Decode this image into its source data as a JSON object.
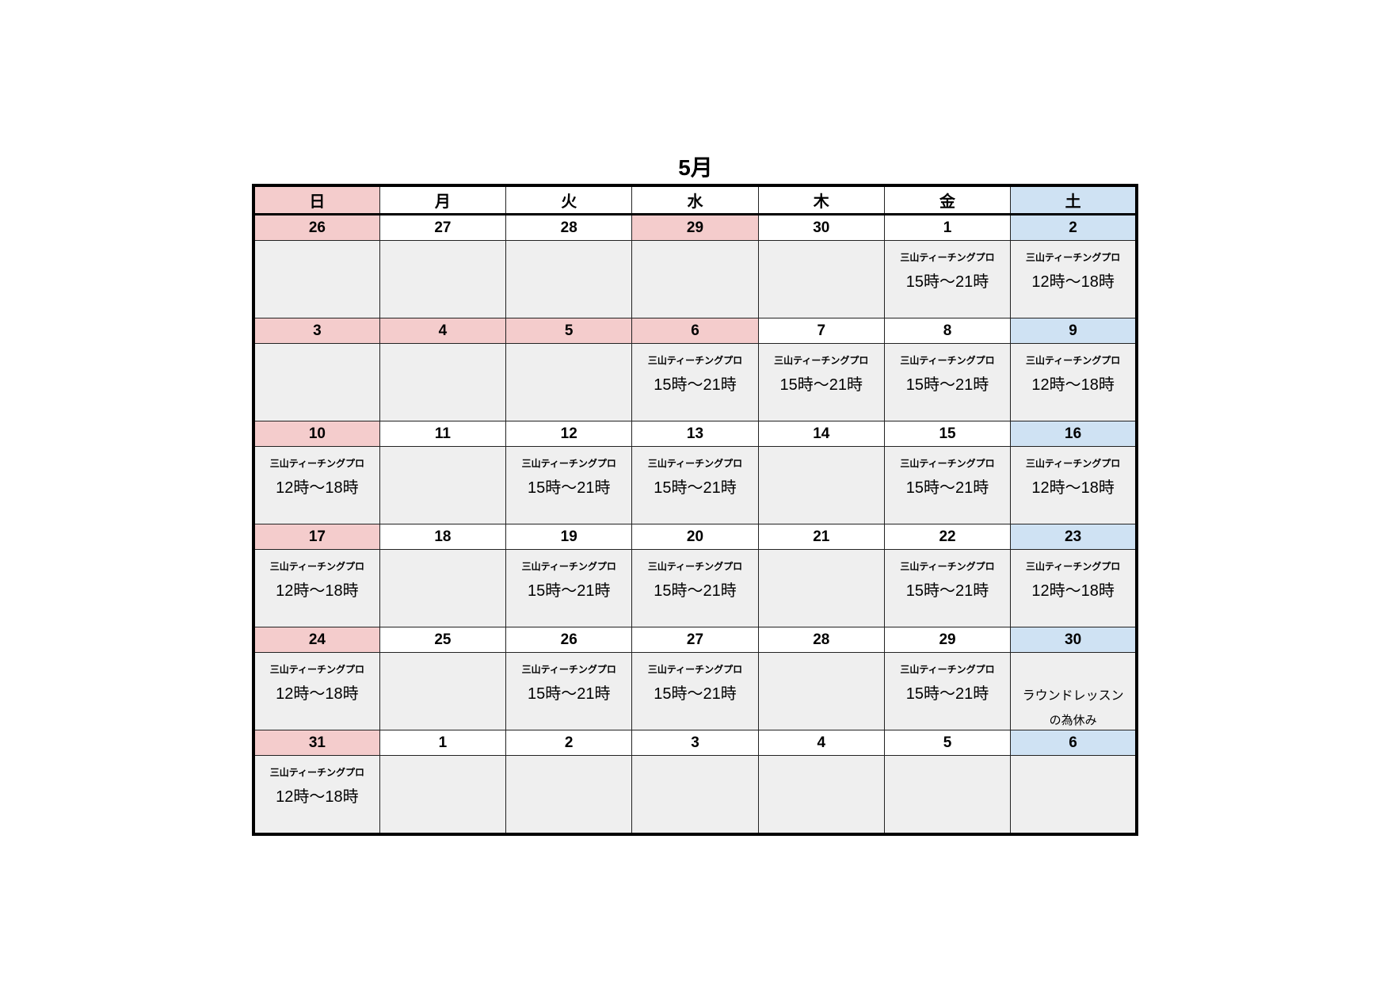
{
  "title": "5月",
  "colors": {
    "sunday_holiday": "#f4cccc",
    "saturday": "#cfe2f3",
    "content_bg": "#efefef"
  },
  "weekdays": [
    {
      "label": "日",
      "color": "pink"
    },
    {
      "label": "月",
      "color": "white"
    },
    {
      "label": "火",
      "color": "white"
    },
    {
      "label": "水",
      "color": "white"
    },
    {
      "label": "木",
      "color": "white"
    },
    {
      "label": "金",
      "color": "white"
    },
    {
      "label": "土",
      "color": "blue"
    }
  ],
  "weeks": [
    {
      "days": [
        {
          "date": "26",
          "color": "pink"
        },
        {
          "date": "27"
        },
        {
          "date": "28"
        },
        {
          "date": "29",
          "color": "pink"
        },
        {
          "date": "30"
        },
        {
          "date": "1",
          "label": "三山ティーチングプロ",
          "time": "15時〜21時"
        },
        {
          "date": "2",
          "color": "blue",
          "label": "三山ティーチングプロ",
          "time": "12時〜18時"
        }
      ]
    },
    {
      "days": [
        {
          "date": "3",
          "color": "pink"
        },
        {
          "date": "4",
          "color": "pink"
        },
        {
          "date": "5",
          "color": "pink"
        },
        {
          "date": "6",
          "color": "pink",
          "label": "三山ティーチングプロ",
          "time": "15時〜21時"
        },
        {
          "date": "7",
          "label": "三山ティーチングプロ",
          "time": "15時〜21時"
        },
        {
          "date": "8",
          "label": "三山ティーチングプロ",
          "time": "15時〜21時"
        },
        {
          "date": "9",
          "color": "blue",
          "label": "三山ティーチングプロ",
          "time": "12時〜18時"
        }
      ]
    },
    {
      "days": [
        {
          "date": "10",
          "color": "pink",
          "label": "三山ティーチングプロ",
          "time": "12時〜18時"
        },
        {
          "date": "11"
        },
        {
          "date": "12",
          "label": "三山ティーチングプロ",
          "time": "15時〜21時"
        },
        {
          "date": "13",
          "label": "三山ティーチングプロ",
          "time": "15時〜21時"
        },
        {
          "date": "14"
        },
        {
          "date": "15",
          "label": "三山ティーチングプロ",
          "time": "15時〜21時"
        },
        {
          "date": "16",
          "color": "blue",
          "label": "三山ティーチングプロ",
          "time": "12時〜18時"
        }
      ]
    },
    {
      "days": [
        {
          "date": "17",
          "color": "pink",
          "label": "三山ティーチングプロ",
          "time": "12時〜18時"
        },
        {
          "date": "18"
        },
        {
          "date": "19",
          "label": "三山ティーチングプロ",
          "time": "15時〜21時"
        },
        {
          "date": "20",
          "label": "三山ティーチングプロ",
          "time": "15時〜21時"
        },
        {
          "date": "21"
        },
        {
          "date": "22",
          "label": "三山ティーチングプロ",
          "time": "15時〜21時"
        },
        {
          "date": "23",
          "color": "blue",
          "label": "三山ティーチングプロ",
          "time": "12時〜18時"
        }
      ]
    },
    {
      "days": [
        {
          "date": "24",
          "color": "pink",
          "label": "三山ティーチングプロ",
          "time": "12時〜18時"
        },
        {
          "date": "25"
        },
        {
          "date": "26",
          "label": "三山ティーチングプロ",
          "time": "15時〜21時"
        },
        {
          "date": "27",
          "label": "三山ティーチングプロ",
          "time": "15時〜21時"
        },
        {
          "date": "28"
        },
        {
          "date": "29",
          "label": "三山ティーチングプロ",
          "time": "15時〜21時"
        },
        {
          "date": "30",
          "color": "blue",
          "note1": "ラウンドレッスン",
          "note2": "の為休み"
        }
      ]
    },
    {
      "days": [
        {
          "date": "31",
          "color": "pink",
          "label": "三山ティーチングプロ",
          "time": "12時〜18時"
        },
        {
          "date": "1"
        },
        {
          "date": "2"
        },
        {
          "date": "3"
        },
        {
          "date": "4"
        },
        {
          "date": "5"
        },
        {
          "date": "6",
          "color": "blue"
        }
      ]
    }
  ]
}
